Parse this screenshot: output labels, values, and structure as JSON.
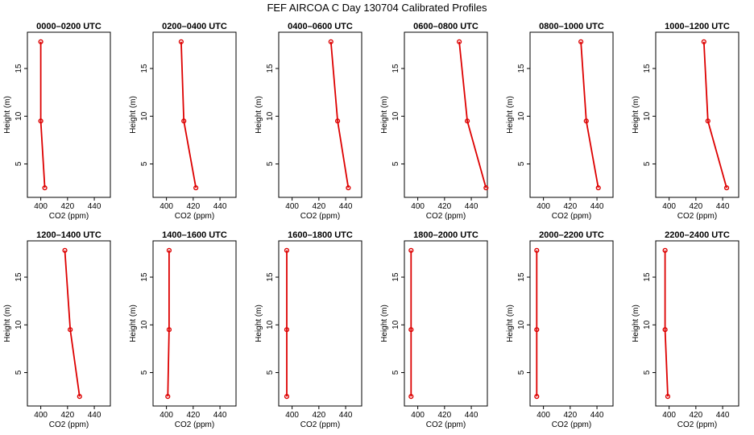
{
  "figure": {
    "title": "FEF AIRCOA C  Day 130704  Calibrated Profiles"
  },
  "colors": {
    "line": "#dd0000",
    "axis": "#000000"
  },
  "chart_data": [
    {
      "type": "line",
      "title": "0000–0200 UTC",
      "xlabel": "CO2 (ppm)",
      "ylabel": "Height (m)",
      "xlim": [
        390,
        452
      ],
      "ylim": [
        1.5,
        18.8
      ],
      "xticks": [
        400,
        420,
        440
      ],
      "yticks": [
        5,
        10,
        15
      ],
      "series": [
        {
          "x": [
            403,
            400,
            400
          ],
          "y": [
            2.5,
            9.5,
            17.8
          ]
        }
      ]
    },
    {
      "type": "line",
      "title": "0200–0400 UTC",
      "xlabel": "CO2 (ppm)",
      "ylabel": "Height (m)",
      "xlim": [
        390,
        452
      ],
      "ylim": [
        1.5,
        18.8
      ],
      "xticks": [
        400,
        420,
        440
      ],
      "yticks": [
        5,
        10,
        15
      ],
      "series": [
        {
          "x": [
            422,
            413,
            411
          ],
          "y": [
            2.5,
            9.5,
            17.8
          ]
        }
      ]
    },
    {
      "type": "line",
      "title": "0400–0600 UTC",
      "xlabel": "CO2 (ppm)",
      "ylabel": "Height (m)",
      "xlim": [
        390,
        452
      ],
      "ylim": [
        1.5,
        18.8
      ],
      "xticks": [
        400,
        420,
        440
      ],
      "yticks": [
        5,
        10,
        15
      ],
      "series": [
        {
          "x": [
            442,
            434,
            429
          ],
          "y": [
            2.5,
            9.5,
            17.8
          ]
        }
      ]
    },
    {
      "type": "line",
      "title": "0600–0800 UTC",
      "xlabel": "CO2 (ppm)",
      "ylabel": "Height (m)",
      "xlim": [
        390,
        452
      ],
      "ylim": [
        1.5,
        18.8
      ],
      "xticks": [
        400,
        420,
        440
      ],
      "yticks": [
        5,
        10,
        15
      ],
      "series": [
        {
          "x": [
            451,
            437,
            431
          ],
          "y": [
            2.5,
            9.5,
            17.8
          ]
        }
      ]
    },
    {
      "type": "line",
      "title": "0800–1000 UTC",
      "xlabel": "CO2 (ppm)",
      "ylabel": "Height (m)",
      "xlim": [
        390,
        452
      ],
      "ylim": [
        1.5,
        18.8
      ],
      "xticks": [
        400,
        420,
        440
      ],
      "yticks": [
        5,
        10,
        15
      ],
      "series": [
        {
          "x": [
            441,
            432,
            428
          ],
          "y": [
            2.5,
            9.5,
            17.8
          ]
        }
      ]
    },
    {
      "type": "line",
      "title": "1000–1200 UTC",
      "xlabel": "CO2 (ppm)",
      "ylabel": "Height (m)",
      "xlim": [
        390,
        452
      ],
      "ylim": [
        1.5,
        18.8
      ],
      "xticks": [
        400,
        420,
        440
      ],
      "yticks": [
        5,
        10,
        15
      ],
      "series": [
        {
          "x": [
            443,
            429,
            426
          ],
          "y": [
            2.5,
            9.5,
            17.8
          ]
        }
      ]
    },
    {
      "type": "line",
      "title": "1200–1400 UTC",
      "xlabel": "CO2 (ppm)",
      "ylabel": "Height (m)",
      "xlim": [
        390,
        452
      ],
      "ylim": [
        1.5,
        18.8
      ],
      "xticks": [
        400,
        420,
        440
      ],
      "yticks": [
        5,
        10,
        15
      ],
      "series": [
        {
          "x": [
            429,
            422,
            418
          ],
          "y": [
            2.5,
            9.5,
            17.8
          ]
        }
      ]
    },
    {
      "type": "line",
      "title": "1400–1600 UTC",
      "xlabel": "CO2 (ppm)",
      "ylabel": "Height (m)",
      "xlim": [
        390,
        452
      ],
      "ylim": [
        1.5,
        18.8
      ],
      "xticks": [
        400,
        420,
        440
      ],
      "yticks": [
        5,
        10,
        15
      ],
      "series": [
        {
          "x": [
            401,
            402,
            402
          ],
          "y": [
            2.5,
            9.5,
            17.8
          ]
        }
      ]
    },
    {
      "type": "line",
      "title": "1600–1800 UTC",
      "xlabel": "CO2 (ppm)",
      "ylabel": "Height (m)",
      "xlim": [
        390,
        452
      ],
      "ylim": [
        1.5,
        18.8
      ],
      "xticks": [
        400,
        420,
        440
      ],
      "yticks": [
        5,
        10,
        15
      ],
      "series": [
        {
          "x": [
            396,
            396,
            396
          ],
          "y": [
            2.5,
            9.5,
            17.8
          ]
        }
      ]
    },
    {
      "type": "line",
      "title": "1800–2000 UTC",
      "xlabel": "CO2 (ppm)",
      "ylabel": "Height (m)",
      "xlim": [
        390,
        452
      ],
      "ylim": [
        1.5,
        18.8
      ],
      "xticks": [
        400,
        420,
        440
      ],
      "yticks": [
        5,
        10,
        15
      ],
      "series": [
        {
          "x": [
            395,
            395,
            395
          ],
          "y": [
            2.5,
            9.5,
            17.8
          ]
        }
      ]
    },
    {
      "type": "line",
      "title": "2000–2200 UTC",
      "xlabel": "CO2 (ppm)",
      "ylabel": "Height (m)",
      "xlim": [
        390,
        452
      ],
      "ylim": [
        1.5,
        18.8
      ],
      "xticks": [
        400,
        420,
        440
      ],
      "yticks": [
        5,
        10,
        15
      ],
      "series": [
        {
          "x": [
            395,
            395,
            395
          ],
          "y": [
            2.5,
            9.5,
            17.8
          ]
        }
      ]
    },
    {
      "type": "line",
      "title": "2200–2400 UTC",
      "xlabel": "CO2 (ppm)",
      "ylabel": "Height (m)",
      "xlim": [
        390,
        452
      ],
      "ylim": [
        1.5,
        18.8
      ],
      "xticks": [
        400,
        420,
        440
      ],
      "yticks": [
        5,
        10,
        15
      ],
      "series": [
        {
          "x": [
            399,
            397,
            397
          ],
          "y": [
            2.5,
            9.5,
            17.8
          ]
        }
      ]
    }
  ]
}
